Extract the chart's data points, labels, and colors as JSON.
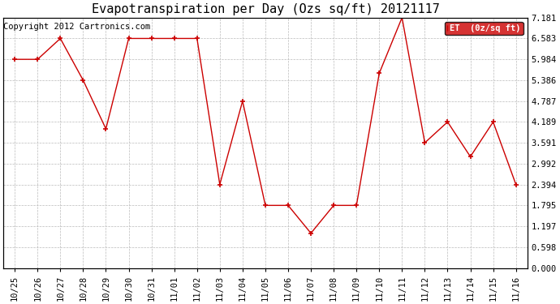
{
  "title": "Evapotranspiration per Day (Ozs sq/ft) 20121117",
  "copyright": "Copyright 2012 Cartronics.com",
  "legend_label": "ET  (0z/sq ft)",
  "x_labels": [
    "10/25",
    "10/26",
    "10/27",
    "10/28",
    "10/29",
    "10/30",
    "10/31",
    "11/01",
    "11/02",
    "11/03",
    "11/04",
    "11/05",
    "11/06",
    "11/07",
    "11/08",
    "11/09",
    "11/10",
    "11/11",
    "11/12",
    "11/13",
    "11/14",
    "11/15",
    "11/16"
  ],
  "y_data": [
    5.984,
    5.984,
    6.583,
    5.386,
    3.99,
    6.583,
    6.583,
    6.583,
    6.583,
    2.394,
    4.787,
    1.795,
    1.795,
    0.997,
    1.795,
    1.795,
    5.585,
    7.181,
    3.591,
    4.189,
    3.193,
    4.189,
    2.394
  ],
  "line_color": "#cc0000",
  "marker_color": "#cc0000",
  "grid_color": "#bbbbbb",
  "background_color": "#ffffff",
  "legend_bg": "#cc0000",
  "legend_text_color": "#ffffff",
  "y_ticks": [
    0.0,
    0.598,
    1.197,
    1.795,
    2.394,
    2.992,
    3.591,
    4.189,
    4.787,
    5.386,
    5.984,
    6.583,
    7.181
  ],
  "ylim": [
    0.0,
    7.181
  ],
  "title_fontsize": 11,
  "tick_fontsize": 7.5,
  "copyright_fontsize": 7.5
}
